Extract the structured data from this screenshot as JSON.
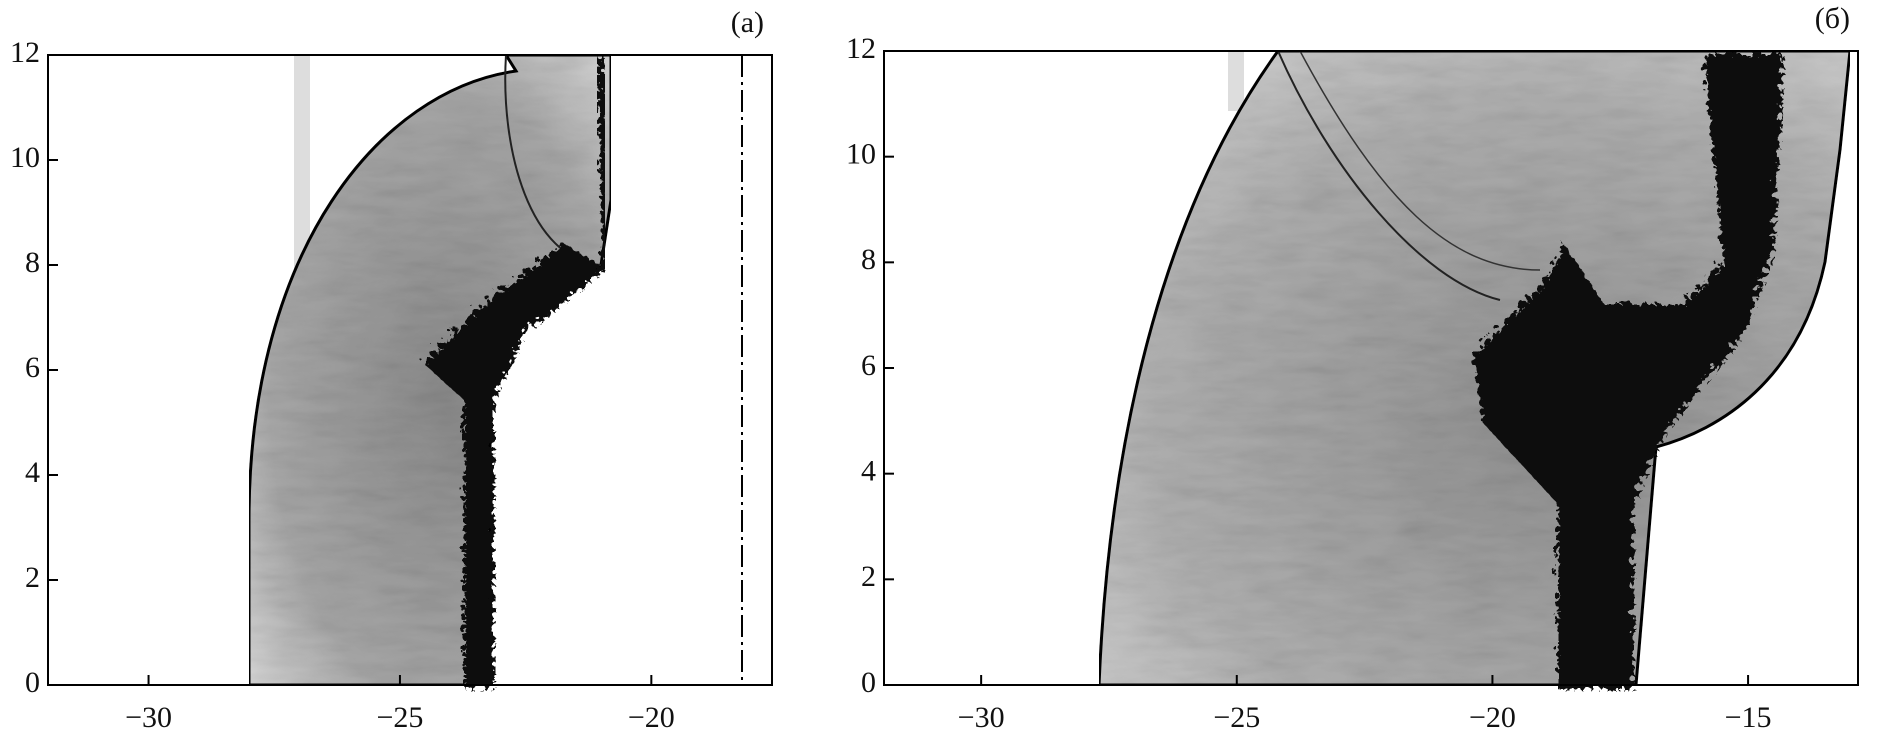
{
  "chart_data": [
    {
      "type": "image",
      "panel_label": "(a)",
      "xlim": [
        -32,
        -17.6
      ],
      "ylim": [
        0,
        12
      ],
      "xticks": [
        {
          "value": -30,
          "label": "−30"
        },
        {
          "value": -25,
          "label": "−25"
        },
        {
          "value": -20,
          "label": "−20"
        }
      ],
      "yticks": [
        0,
        2,
        4,
        6,
        8,
        10,
        12
      ]
    },
    {
      "type": "image",
      "panel_label": "(б)",
      "xlim": [
        -31.9,
        -12.85
      ],
      "ylim": [
        0,
        12
      ],
      "xticks": [
        {
          "value": -30,
          "label": "−30"
        },
        {
          "value": -25,
          "label": "−25"
        },
        {
          "value": -20,
          "label": "−20"
        },
        {
          "value": -15,
          "label": "−15"
        }
      ],
      "yticks": [
        0,
        2,
        4,
        6,
        8,
        10,
        12
      ]
    }
  ]
}
